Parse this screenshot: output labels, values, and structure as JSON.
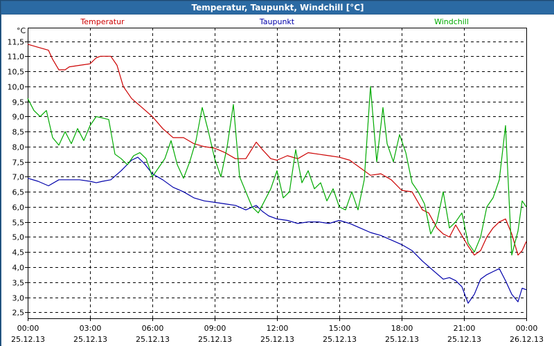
{
  "window": {
    "title": "Temperatur, Taupunkt, Windchill [°C]"
  },
  "chart_data": {
    "type": "line",
    "title": "Temperatur, Taupunkt, Windchill [°C]",
    "ylabel": "°C",
    "ylim": [
      2.3,
      11.95
    ],
    "xlim_hours": [
      0,
      24
    ],
    "y_ticks": [
      "2,5",
      "3,0",
      "3,5",
      "4,0",
      "4,5",
      "5,0",
      "5,5",
      "6,0",
      "6,5",
      "7,0",
      "7,5",
      "8,0",
      "8,5",
      "9,0",
      "9,5",
      "10,0",
      "10,5",
      "11,0",
      "11,5"
    ],
    "x_ticks": [
      {
        "time": "00:00",
        "date": "25.12.13"
      },
      {
        "time": "03:00",
        "date": "25.12.13"
      },
      {
        "time": "06:00",
        "date": "25.12.13"
      },
      {
        "time": "09:00",
        "date": "25.12.13"
      },
      {
        "time": "12:00",
        "date": "25.12.13"
      },
      {
        "time": "15:00",
        "date": "25.12.13"
      },
      {
        "time": "18:00",
        "date": "25.12.13"
      },
      {
        "time": "21:00",
        "date": "25.12.13"
      },
      {
        "time": "00:00",
        "date": "26.12.13"
      }
    ],
    "series": [
      {
        "name": "Temperatur",
        "color": "#cc0000",
        "x": [
          0,
          0.5,
          1.0,
          1.2,
          1.5,
          1.8,
          2.0,
          2.5,
          3.0,
          3.3,
          3.5,
          4.0,
          4.3,
          4.6,
          5.0,
          5.5,
          6.0,
          6.5,
          7.0,
          7.5,
          8.0,
          8.5,
          9.0,
          9.5,
          10.0,
          10.5,
          11.0,
          11.3,
          11.7,
          12.0,
          12.5,
          13.0,
          13.5,
          14.0,
          14.5,
          15.0,
          15.5,
          16.0,
          16.5,
          17.0,
          17.5,
          18.0,
          18.5,
          19.0,
          19.3,
          19.7,
          20.0,
          20.3,
          20.6,
          20.9,
          21.2,
          21.5,
          21.8,
          22.1,
          22.4,
          22.7,
          23.0,
          23.3,
          23.6,
          23.8,
          24.0
        ],
        "values": [
          11.4,
          11.3,
          11.2,
          10.9,
          10.55,
          10.55,
          10.65,
          10.7,
          10.75,
          10.95,
          11.0,
          11.0,
          10.7,
          10.0,
          9.6,
          9.3,
          9.0,
          8.6,
          8.3,
          8.3,
          8.1,
          8.0,
          7.95,
          7.8,
          7.6,
          7.6,
          8.15,
          7.9,
          7.6,
          7.55,
          7.7,
          7.6,
          7.8,
          7.75,
          7.7,
          7.65,
          7.55,
          7.3,
          7.05,
          7.1,
          6.9,
          6.55,
          6.5,
          5.9,
          5.8,
          5.3,
          5.1,
          5.0,
          5.4,
          5.05,
          4.7,
          4.4,
          4.55,
          5.0,
          5.3,
          5.5,
          5.6,
          5.1,
          4.4,
          4.55,
          4.85
        ]
      },
      {
        "name": "Taupunkt",
        "color": "#0000aa",
        "x": [
          0,
          0.5,
          1.0,
          1.5,
          2.0,
          2.5,
          3.0,
          3.3,
          3.6,
          4.0,
          4.5,
          5.0,
          5.3,
          5.6,
          6.0,
          6.5,
          7.0,
          7.5,
          8.0,
          8.5,
          9.0,
          9.5,
          10.0,
          10.5,
          11.0,
          11.3,
          11.6,
          12.0,
          12.5,
          13.0,
          13.5,
          14.0,
          14.5,
          15.0,
          15.5,
          16.0,
          16.5,
          17.0,
          17.5,
          18.0,
          18.5,
          19.0,
          19.5,
          20.0,
          20.3,
          20.6,
          20.9,
          21.2,
          21.5,
          21.8,
          22.1,
          22.4,
          22.7,
          23.0,
          23.3,
          23.6,
          23.8,
          24.0
        ],
        "values": [
          6.95,
          6.85,
          6.7,
          6.9,
          6.9,
          6.9,
          6.85,
          6.8,
          6.85,
          6.9,
          7.2,
          7.55,
          7.65,
          7.45,
          7.1,
          6.9,
          6.65,
          6.5,
          6.3,
          6.2,
          6.15,
          6.1,
          6.05,
          5.9,
          6.05,
          5.85,
          5.7,
          5.6,
          5.55,
          5.45,
          5.5,
          5.5,
          5.45,
          5.55,
          5.45,
          5.3,
          5.15,
          5.05,
          4.9,
          4.75,
          4.55,
          4.2,
          3.9,
          3.6,
          3.65,
          3.55,
          3.35,
          2.8,
          3.1,
          3.6,
          3.75,
          3.85,
          3.95,
          3.55,
          3.1,
          2.85,
          3.3,
          3.25
        ]
      },
      {
        "name": "Windchill",
        "color": "#00aa00",
        "x": [
          0,
          0.3,
          0.6,
          0.9,
          1.2,
          1.5,
          1.8,
          2.1,
          2.4,
          2.7,
          3.0,
          3.3,
          3.6,
          3.9,
          4.2,
          4.5,
          4.8,
          5.1,
          5.4,
          5.7,
          6.0,
          6.3,
          6.6,
          6.9,
          7.2,
          7.5,
          7.8,
          8.1,
          8.4,
          8.7,
          9.0,
          9.3,
          9.6,
          9.9,
          10.2,
          10.5,
          10.8,
          11.1,
          11.4,
          11.7,
          12.0,
          12.3,
          12.6,
          12.9,
          13.2,
          13.5,
          13.8,
          14.1,
          14.4,
          14.7,
          15.0,
          15.3,
          15.6,
          15.9,
          16.2,
          16.5,
          16.8,
          17.1,
          17.3,
          17.6,
          17.9,
          18.2,
          18.5,
          18.8,
          19.1,
          19.4,
          19.7,
          20.0,
          20.3,
          20.6,
          20.9,
          21.2,
          21.5,
          21.8,
          22.1,
          22.4,
          22.7,
          23.0,
          23.3,
          23.6,
          23.8,
          24.0
        ],
        "values": [
          9.6,
          9.2,
          9.0,
          9.2,
          8.3,
          8.05,
          8.5,
          8.1,
          8.6,
          8.2,
          8.7,
          9.0,
          8.95,
          8.9,
          7.75,
          7.6,
          7.4,
          7.7,
          7.8,
          7.6,
          7.0,
          7.3,
          7.6,
          8.2,
          7.4,
          6.95,
          7.5,
          8.2,
          9.3,
          8.5,
          7.6,
          7.0,
          8.0,
          9.4,
          7.0,
          6.5,
          6.0,
          5.8,
          6.2,
          6.6,
          7.2,
          6.3,
          6.5,
          7.9,
          6.8,
          7.2,
          6.6,
          6.8,
          6.2,
          6.6,
          6.0,
          5.9,
          6.5,
          5.9,
          6.9,
          10.0,
          7.5,
          9.3,
          8.1,
          7.5,
          8.4,
          7.8,
          6.8,
          6.5,
          6.1,
          5.1,
          5.5,
          6.5,
          5.3,
          5.5,
          5.8,
          4.8,
          4.5,
          5.0,
          6.0,
          6.3,
          6.9,
          8.7,
          4.4,
          5.2,
          6.2,
          6.0
        ]
      }
    ]
  }
}
